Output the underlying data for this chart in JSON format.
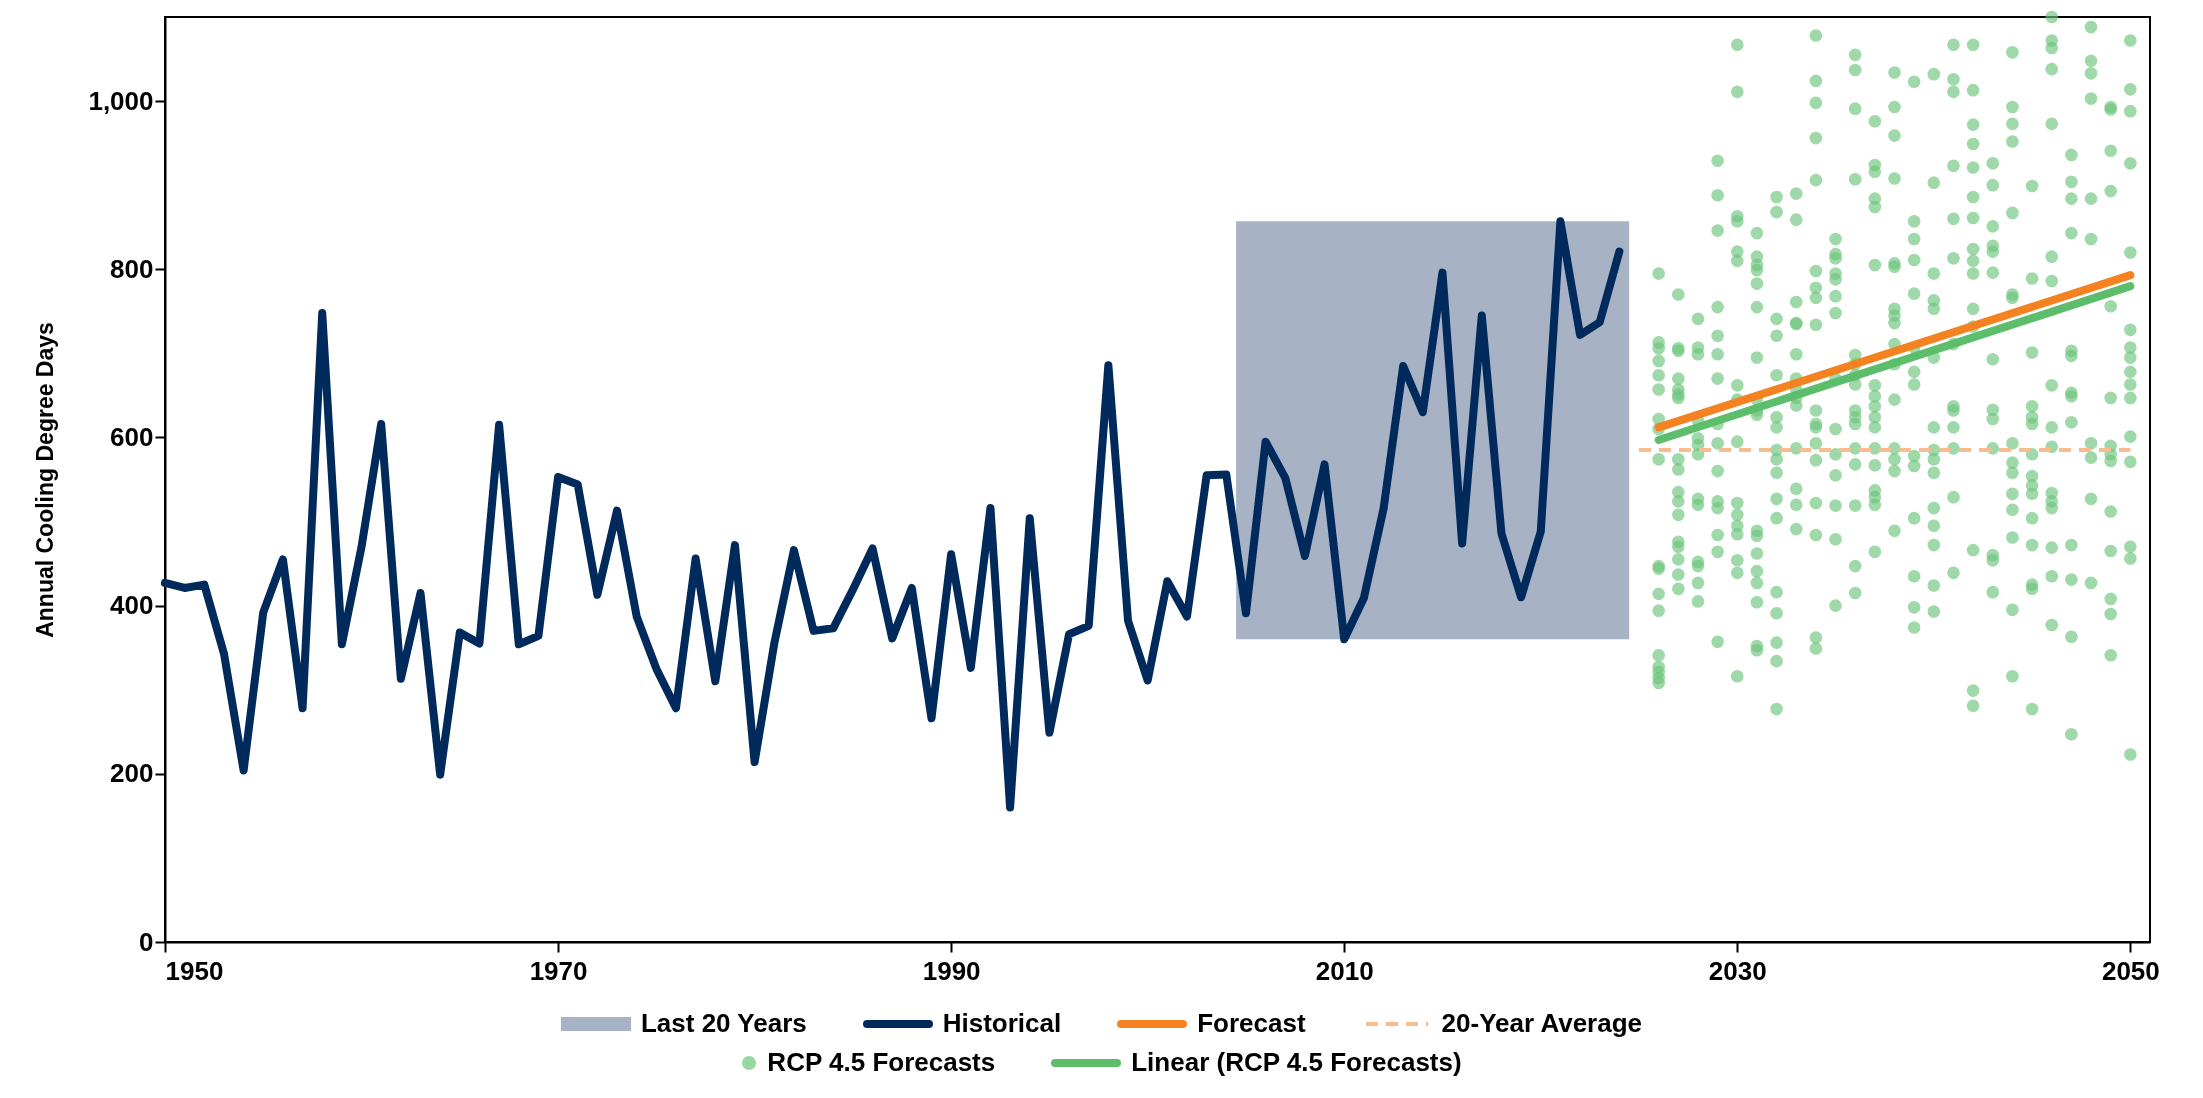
{
  "chart_data": {
    "type": "line",
    "ylabel": "Annual Cooling Degree Days",
    "xlim": [
      1950,
      2051
    ],
    "xticks": [
      1950,
      1970,
      1990,
      2010,
      2030,
      2050
    ],
    "ylim": [
      0,
      1100
    ],
    "yticks": [
      0,
      200,
      400,
      600,
      800,
      {
        "value": 1000,
        "label": "1,000"
      }
    ],
    "legend": "bottom",
    "bands": [
      {
        "axis": "x",
        "from": 2004.5,
        "to": 2024.5,
        "label": "Last 20 Years",
        "color": "#a7b3c5"
      }
    ],
    "series": [
      {
        "name": "Historical",
        "color": "#002a5c",
        "x": [
          1950,
          1951,
          1952,
          1953,
          1954,
          1955,
          1956,
          1957,
          1958,
          1959,
          1960,
          1961,
          1962,
          1963,
          1964,
          1965,
          1966,
          1967,
          1968,
          1969,
          1970,
          1971,
          1972,
          1973,
          1974,
          1975,
          1976,
          1977,
          1978,
          1979,
          1980,
          1981,
          1982,
          1983,
          1984,
          1985,
          1986,
          1987,
          1988,
          1989,
          1990,
          1991,
          1992,
          1993,
          1994,
          1995,
          1996,
          1997,
          1998,
          1999,
          2000,
          2001,
          2002,
          2003,
          2004,
          2005,
          2006,
          2007,
          2008,
          2009,
          2010,
          2011,
          2012,
          2013,
          2014,
          2015,
          2016,
          2017,
          2018,
          2019,
          2020,
          2021,
          2022,
          2023,
          2024
        ],
        "values": [
          427,
          421,
          425,
          343,
          204,
          392,
          455,
          278,
          748,
          354,
          470,
          616,
          313,
          415,
          199,
          368,
          355,
          615,
          354,
          364,
          553,
          544,
          413,
          513,
          387,
          325,
          278,
          456,
          310,
          472,
          214,
          355,
          466,
          370,
          373,
          419,
          468,
          361,
          421,
          266,
          461,
          326,
          516,
          160,
          504,
          249,
          366,
          376,
          686,
          382,
          311,
          429,
          387,
          555,
          556,
          391,
          595,
          552,
          459,
          568,
          360,
          409,
          515,
          685,
          630,
          796,
          474,
          745,
          486,
          410,
          488,
          857,
          722,
          737,
          821
        ]
      },
      {
        "name": "Forecast",
        "color": "#f58220",
        "x": [
          2026,
          2050
        ],
        "values": [
          612,
          793
        ]
      },
      {
        "name": "20-Year Average",
        "line_style": "dashed",
        "color": "#f8bd8e",
        "x": [
          2025,
          2050
        ],
        "values": [
          585,
          585
        ]
      },
      {
        "name": "RCP 4.5 Forecasts",
        "type": "scatter",
        "marker": "circle",
        "color": "#6cc47b",
        "x": [
          2026,
          2026,
          2026,
          2026,
          2026,
          2026,
          2026,
          2026,
          2026,
          2026,
          2026,
          2026,
          2026,
          2026,
          2026,
          2026,
          2026,
          2026,
          2027,
          2027,
          2027,
          2027,
          2027,
          2027,
          2027,
          2027,
          2027,
          2027,
          2027,
          2027,
          2027,
          2027,
          2027,
          2027,
          2027,
          2028,
          2028,
          2028,
          2028,
          2028,
          2028,
          2028,
          2028,
          2028,
          2028,
          2028,
          2028,
          2028,
          2029,
          2029,
          2029,
          2029,
          2029,
          2029,
          2029,
          2029,
          2029,
          2029,
          2029,
          2029,
          2029,
          2029,
          2029,
          2030,
          2030,
          2030,
          2030,
          2030,
          2030,
          2030,
          2030,
          2030,
          2030,
          2030,
          2030,
          2030,
          2030,
          2030,
          2030,
          2031,
          2031,
          2031,
          2031,
          2031,
          2031,
          2031,
          2031,
          2031,
          2031,
          2031,
          2031,
          2031,
          2031,
          2031,
          2031,
          2031,
          2031,
          2032,
          2032,
          2032,
          2032,
          2032,
          2032,
          2032,
          2032,
          2032,
          2032,
          2032,
          2032,
          2032,
          2032,
          2032,
          2032,
          2032,
          2033,
          2033,
          2033,
          2033,
          2033,
          2033,
          2033,
          2033,
          2033,
          2033,
          2033,
          2033,
          2033,
          2033,
          2034,
          2034,
          2034,
          2034,
          2034,
          2034,
          2034,
          2034,
          2034,
          2034,
          2034,
          2034,
          2034,
          2034,
          2034,
          2034,
          2034,
          2034,
          2035,
          2035,
          2035,
          2035,
          2035,
          2035,
          2035,
          2035,
          2035,
          2035,
          2035,
          2035,
          2035,
          2035,
          2036,
          2036,
          2036,
          2036,
          2036,
          2036,
          2036,
          2036,
          2036,
          2036,
          2036,
          2036,
          2036,
          2036,
          2036,
          2036,
          2037,
          2037,
          2037,
          2037,
          2037,
          2037,
          2037,
          2037,
          2037,
          2037,
          2037,
          2037,
          2037,
          2037,
          2037,
          2037,
          2037,
          2038,
          2038,
          2038,
          2038,
          2038,
          2038,
          2038,
          2038,
          2038,
          2038,
          2038,
          2038,
          2038,
          2038,
          2038,
          2038,
          2039,
          2039,
          2039,
          2039,
          2039,
          2039,
          2039,
          2039,
          2039,
          2039,
          2039,
          2039,
          2039,
          2039,
          2040,
          2040,
          2040,
          2040,
          2040,
          2040,
          2040,
          2040,
          2040,
          2040,
          2040,
          2040,
          2040,
          2040,
          2040,
          2041,
          2041,
          2041,
          2041,
          2041,
          2041,
          2041,
          2041,
          2041,
          2041,
          2041,
          2041,
          2041,
          2042,
          2042,
          2042,
          2042,
          2042,
          2042,
          2042,
          2042,
          2042,
          2042,
          2042,
          2042,
          2042,
          2042,
          2042,
          2043,
          2043,
          2043,
          2043,
          2043,
          2043,
          2043,
          2043,
          2043,
          2043,
          2043,
          2043,
          2043,
          2044,
          2044,
          2044,
          2044,
          2044,
          2044,
          2044,
          2044,
          2044,
          2044,
          2044,
          2044,
          2044,
          2044,
          2044,
          2045,
          2045,
          2045,
          2045,
          2045,
          2045,
          2045,
          2045,
          2045,
          2045,
          2045,
          2045,
          2045,
          2045,
          2045,
          2046,
          2046,
          2046,
          2046,
          2046,
          2046,
          2046,
          2046,
          2046,
          2046,
          2046,
          2046,
          2046,
          2046,
          2046,
          2046,
          2047,
          2047,
          2047,
          2047,
          2047,
          2047,
          2047,
          2047,
          2047,
          2047,
          2047,
          2047,
          2047,
          2048,
          2048,
          2048,
          2048,
          2048,
          2048,
          2048,
          2048,
          2048,
          2048,
          2049,
          2049,
          2049,
          2049,
          2049,
          2049,
          2049,
          2049,
          2049,
          2049,
          2049,
          2049,
          2049,
          2049,
          2050,
          2050,
          2050,
          2050,
          2050,
          2050,
          2050,
          2050,
          2050,
          2050,
          2050,
          2050,
          2050,
          2050,
          2050,
          2050
        ],
        "values": [
          795,
          713,
          706,
          691,
          674,
          657,
          622,
          610,
          574,
          447,
          444,
          414,
          394,
          341,
          327,
          321,
          314,
          308,
          770,
          706,
          703,
          670,
          657,
          651,
          647,
          574,
          562,
          535,
          524,
          508,
          476,
          470,
          455,
          437,
          420,
          741,
          707,
          699,
          620,
          599,
          591,
          580,
          527,
          520,
          452,
          447,
          427,
          405,
          929,
          888,
          846,
          755,
          721,
          699,
          670,
          616,
          593,
          560,
          524,
          516,
          484,
          464,
          357,
          1067,
          1011,
          863,
          857,
          821,
          810,
          662,
          645,
          595,
          522,
          508,
          495,
          485,
          454,
          439,
          316,
          843,
          815,
          805,
          799,
          783,
          755,
          695,
          645,
          632,
          627,
          489,
          483,
          462,
          441,
          427,
          404,
          352,
          347,
          886,
          868,
          741,
          721,
          674,
          624,
          612,
          585,
          574,
          558,
          527,
          504,
          416,
          391,
          356,
          334,
          277,
          890,
          859,
          761,
          736,
          735,
          699,
          670,
          657,
          647,
          638,
          587,
          539,
          520,
          491,
          1078,
          1024,
          998,
          956,
          906,
          798,
          778,
          766,
          734,
          632,
          616,
          612,
          593,
          573,
          522,
          484,
          362,
          349,
          836,
          818,
          813,
          795,
          788,
          768,
          748,
          670,
          610,
          580,
          555,
          519,
          479,
          400,
          1055,
          1037,
          991,
          907,
          698,
          687,
          674,
          663,
          632,
          624,
          616,
          587,
          568,
          519,
          447,
          415,
          976,
          924,
          916,
          884,
          874,
          805,
          662,
          649,
          637,
          624,
          612,
          587,
          567,
          537,
          529,
          520,
          464,
          1034,
          993,
          959,
          908,
          807,
          803,
          753,
          745,
          736,
          711,
          687,
          645,
          587,
          574,
          560,
          489,
          1023,
          857,
          836,
          811,
          771,
          707,
          678,
          663,
          578,
          566,
          504,
          435,
          398,
          374,
          1032,
          903,
          795,
          763,
          753,
          695,
          612,
          585,
          574,
          558,
          516,
          495,
          472,
          424,
          393,
          1067,
          1026,
          1011,
          923,
          860,
          813,
          711,
          637,
          632,
          612,
          587,
          529,
          439,
          1067,
          1013,
          972,
          949,
          921,
          886,
          861,
          824,
          810,
          795,
          753,
          732,
          466,
          299,
          281,
          926,
          900,
          851,
          828,
          821,
          796,
          693,
          633,
          622,
          587,
          460,
          454,
          416,
          1058,
          993,
          973,
          952,
          867,
          770,
          766,
          593,
          570,
          558,
          533,
          514,
          481,
          395,
          316,
          899,
          789,
          701,
          637,
          624,
          616,
          580,
          554,
          543,
          533,
          504,
          472,
          425,
          420,
          277,
          1100,
          1072,
          1063,
          1038,
          973,
          815,
          786,
          662,
          612,
          589,
          534,
          524,
          516,
          469,
          435,
          377,
          936,
          904,
          884,
          843,
          703,
          697,
          653,
          649,
          618,
          472,
          431,
          363,
          247,
          1088,
          1048,
          1033,
          1003,
          884,
          836,
          593,
          576,
          527,
          427,
          993,
          990,
          941,
          893,
          756,
          647,
          590,
          580,
          572,
          512,
          465,
          408,
          390,
          341,
          1072,
          1014,
          988,
          926,
          820,
          728,
          707,
          695,
          678,
          663,
          647,
          601,
          571,
          470,
          456,
          223
        ]
      },
      {
        "name": "Linear (RCP 4.5 Forecasts)",
        "color": "#5cbd6a",
        "x": [
          2026,
          2050
        ],
        "values": [
          597,
          780
        ]
      }
    ]
  }
}
